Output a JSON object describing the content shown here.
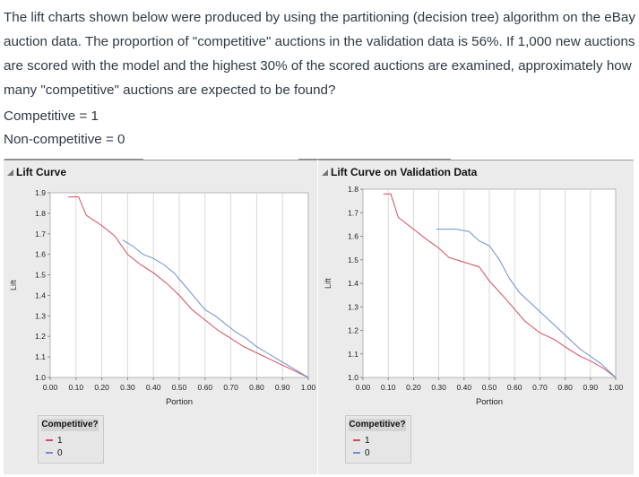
{
  "question": "The lift charts shown below were produced by using the partitioning (decision tree) algorithm on the eBay auction data. The proportion of \"competitive\" auctions in the validation data is 56%. If 1,000 new auctions are scored with the model and the highest 30% of the scored auctions are examined, approximately how many \"competitive\" auctions are expected to be found?",
  "definitions": [
    "Competitive = 1",
    "Non-competitive = 0"
  ],
  "colors": {
    "series_1": "#d94a5a",
    "series_0": "#6b8fd6",
    "grid": "#d9d9d9"
  },
  "chart_data": [
    {
      "type": "line",
      "title": "Lift Curve",
      "xlabel": "Portion",
      "ylabel": "Lift",
      "xlim": [
        0,
        1
      ],
      "ylim": [
        1.0,
        1.9
      ],
      "x_ticks": [
        "0.00",
        "0.10",
        "0.20",
        "0.30",
        "0.40",
        "0.50",
        "0.60",
        "0.70",
        "0.80",
        "0.90",
        "1.00"
      ],
      "y_ticks": [
        "1.0",
        "1.1",
        "1.2",
        "1.3",
        "1.4",
        "1.5",
        "1.6",
        "1.7",
        "1.8",
        "1.9"
      ],
      "legend_title": "Competitive?",
      "series": [
        {
          "name": "1",
          "x": [
            0.07,
            0.11,
            0.14,
            0.2,
            0.25,
            0.3,
            0.35,
            0.4,
            0.45,
            0.5,
            0.55,
            0.6,
            0.65,
            0.7,
            0.75,
            0.8,
            0.85,
            0.9,
            0.95,
            1.0
          ],
          "y": [
            1.88,
            1.88,
            1.79,
            1.74,
            1.69,
            1.6,
            1.55,
            1.51,
            1.46,
            1.4,
            1.33,
            1.28,
            1.23,
            1.19,
            1.15,
            1.12,
            1.09,
            1.06,
            1.03,
            1.0
          ]
        },
        {
          "name": "0",
          "x": [
            0.28,
            0.32,
            0.36,
            0.4,
            0.44,
            0.48,
            0.52,
            0.56,
            0.6,
            0.64,
            0.68,
            0.72,
            0.76,
            0.8,
            0.84,
            0.88,
            0.92,
            0.96,
            1.0
          ],
          "y": [
            1.67,
            1.64,
            1.6,
            1.58,
            1.55,
            1.51,
            1.45,
            1.39,
            1.33,
            1.3,
            1.26,
            1.22,
            1.19,
            1.15,
            1.12,
            1.09,
            1.06,
            1.03,
            1.0
          ]
        }
      ]
    },
    {
      "type": "line",
      "title": "Lift Curve on Validation Data",
      "xlabel": "Portion",
      "ylabel": "Lift",
      "xlim": [
        0,
        1
      ],
      "ylim": [
        1.0,
        1.8
      ],
      "x_ticks": [
        "0.00",
        "0.10",
        "0.20",
        "0.30",
        "0.40",
        "0.50",
        "0.60",
        "0.70",
        "0.80",
        "0.90",
        "1.00"
      ],
      "y_ticks": [
        "1.0",
        "1.1",
        "1.2",
        "1.3",
        "1.4",
        "1.5",
        "1.6",
        "1.7",
        "1.8"
      ],
      "legend_title": "Competitive?",
      "series": [
        {
          "name": "1",
          "x": [
            0.08,
            0.11,
            0.14,
            0.2,
            0.26,
            0.3,
            0.34,
            0.4,
            0.46,
            0.5,
            0.56,
            0.6,
            0.64,
            0.7,
            0.76,
            0.8,
            0.86,
            0.9,
            0.95,
            1.0
          ],
          "y": [
            1.78,
            1.78,
            1.68,
            1.63,
            1.58,
            1.55,
            1.51,
            1.49,
            1.47,
            1.41,
            1.34,
            1.29,
            1.24,
            1.19,
            1.16,
            1.13,
            1.09,
            1.07,
            1.04,
            1.0
          ]
        },
        {
          "name": "0",
          "x": [
            0.29,
            0.33,
            0.37,
            0.42,
            0.46,
            0.5,
            0.54,
            0.58,
            0.62,
            0.66,
            0.7,
            0.74,
            0.78,
            0.82,
            0.86,
            0.9,
            0.94,
            1.0
          ],
          "y": [
            1.63,
            1.63,
            1.63,
            1.62,
            1.58,
            1.56,
            1.5,
            1.42,
            1.36,
            1.32,
            1.28,
            1.24,
            1.2,
            1.16,
            1.12,
            1.09,
            1.06,
            1.0
          ]
        }
      ]
    }
  ]
}
